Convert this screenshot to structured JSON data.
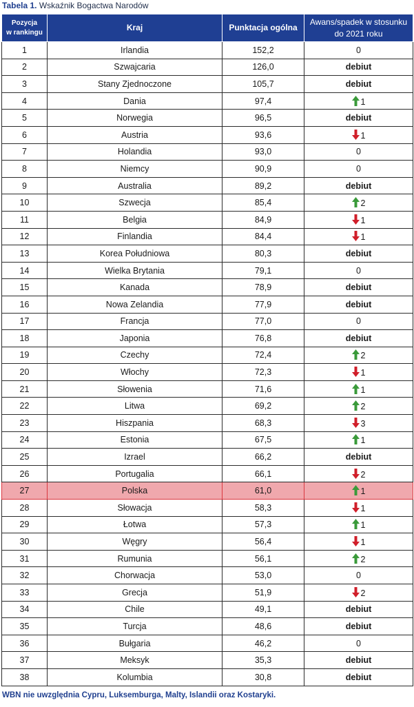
{
  "caption": {
    "label": "Tabela 1.",
    "title": "Wskaźnik Bogactwa Narodów"
  },
  "headers": {
    "position_line1": "Pozycja",
    "position_line2": "w rankingu",
    "country": "Kraj",
    "score": "Punktacja ogólna",
    "change_line1": "Awans/spadek w stosunku",
    "change_line2": "do 2021 roku"
  },
  "colors": {
    "header_bg": "#1f3f93",
    "highlight_bg": "#f0a8ad",
    "up_arrow": "#3a9a3a",
    "down_arrow": "#d01f2a"
  },
  "rows": [
    {
      "pos": "1",
      "country": "Irlandia",
      "score": "152,2",
      "change": {
        "kind": "zero",
        "text": "0"
      }
    },
    {
      "pos": "2",
      "country": "Szwajcaria",
      "score": "126,0",
      "change": {
        "kind": "debut",
        "text": "debiut"
      }
    },
    {
      "pos": "3",
      "country": "Stany Zjednoczone",
      "score": "105,7",
      "change": {
        "kind": "debut",
        "text": "debiut"
      }
    },
    {
      "pos": "4",
      "country": "Dania",
      "score": "97,4",
      "change": {
        "kind": "up",
        "text": "1"
      }
    },
    {
      "pos": "5",
      "country": "Norwegia",
      "score": "96,5",
      "change": {
        "kind": "debut",
        "text": "debiut"
      }
    },
    {
      "pos": "6",
      "country": "Austria",
      "score": "93,6",
      "change": {
        "kind": "down",
        "text": "1"
      }
    },
    {
      "pos": "7",
      "country": "Holandia",
      "score": "93,0",
      "change": {
        "kind": "zero",
        "text": "0"
      }
    },
    {
      "pos": "8",
      "country": "Niemcy",
      "score": "90,9",
      "change": {
        "kind": "zero",
        "text": "0"
      }
    },
    {
      "pos": "9",
      "country": "Australia",
      "score": "89,2",
      "change": {
        "kind": "debut",
        "text": "debiut"
      }
    },
    {
      "pos": "10",
      "country": "Szwecja",
      "score": "85,4",
      "change": {
        "kind": "up",
        "text": "2"
      }
    },
    {
      "pos": "11",
      "country": "Belgia",
      "score": "84,9",
      "change": {
        "kind": "down",
        "text": "1"
      }
    },
    {
      "pos": "12",
      "country": "Finlandia",
      "score": "84,4",
      "change": {
        "kind": "down",
        "text": "1"
      }
    },
    {
      "pos": "13",
      "country": "Korea Południowa",
      "score": "80,3",
      "change": {
        "kind": "debut",
        "text": "debiut"
      }
    },
    {
      "pos": "14",
      "country": "Wielka Brytania",
      "score": "79,1",
      "change": {
        "kind": "zero",
        "text": "0"
      }
    },
    {
      "pos": "15",
      "country": "Kanada",
      "score": "78,9",
      "change": {
        "kind": "debut",
        "text": "debiut"
      }
    },
    {
      "pos": "16",
      "country": "Nowa Zelandia",
      "score": "77,9",
      "change": {
        "kind": "debut",
        "text": "debiut"
      }
    },
    {
      "pos": "17",
      "country": "Francja",
      "score": "77,0",
      "change": {
        "kind": "zero",
        "text": "0"
      }
    },
    {
      "pos": "18",
      "country": "Japonia",
      "score": "76,8",
      "change": {
        "kind": "debut",
        "text": "debiut"
      }
    },
    {
      "pos": "19",
      "country": "Czechy",
      "score": "72,4",
      "change": {
        "kind": "up",
        "text": "2"
      }
    },
    {
      "pos": "20",
      "country": "Włochy",
      "score": "72,3",
      "change": {
        "kind": "down",
        "text": "1"
      }
    },
    {
      "pos": "21",
      "country": "Słowenia",
      "score": "71,6",
      "change": {
        "kind": "up",
        "text": "1"
      }
    },
    {
      "pos": "22",
      "country": "Litwa",
      "score": "69,2",
      "change": {
        "kind": "up",
        "text": "2"
      }
    },
    {
      "pos": "23",
      "country": "Hiszpania",
      "score": "68,3",
      "change": {
        "kind": "down",
        "text": "3"
      }
    },
    {
      "pos": "24",
      "country": "Estonia",
      "score": "67,5",
      "change": {
        "kind": "up",
        "text": "1"
      }
    },
    {
      "pos": "25",
      "country": "Izrael",
      "score": "66,2",
      "change": {
        "kind": "debut",
        "text": "debiut"
      }
    },
    {
      "pos": "26",
      "country": "Portugalia",
      "score": "66,1",
      "change": {
        "kind": "down",
        "text": "2"
      }
    },
    {
      "pos": "27",
      "country": "Polska",
      "score": "61,0",
      "change": {
        "kind": "up",
        "text": "1"
      },
      "highlight": true
    },
    {
      "pos": "28",
      "country": "Słowacja",
      "score": "58,3",
      "change": {
        "kind": "down",
        "text": "1"
      }
    },
    {
      "pos": "29",
      "country": "Łotwa",
      "score": "57,3",
      "change": {
        "kind": "up",
        "text": "1"
      }
    },
    {
      "pos": "30",
      "country": "Węgry",
      "score": "56,4",
      "change": {
        "kind": "down",
        "text": "1"
      }
    },
    {
      "pos": "31",
      "country": "Rumunia",
      "score": "56,1",
      "change": {
        "kind": "up",
        "text": "2"
      }
    },
    {
      "pos": "32",
      "country": "Chorwacja",
      "score": "53,0",
      "change": {
        "kind": "zero",
        "text": "0"
      }
    },
    {
      "pos": "33",
      "country": "Grecja",
      "score": "51,9",
      "change": {
        "kind": "down",
        "text": "2"
      }
    },
    {
      "pos": "34",
      "country": "Chile",
      "score": "49,1",
      "change": {
        "kind": "debut",
        "text": "debiut"
      }
    },
    {
      "pos": "35",
      "country": "Turcja",
      "score": "48,6",
      "change": {
        "kind": "debut",
        "text": "debiut"
      }
    },
    {
      "pos": "36",
      "country": "Bułgaria",
      "score": "46,2",
      "change": {
        "kind": "zero",
        "text": "0"
      }
    },
    {
      "pos": "37",
      "country": "Meksyk",
      "score": "35,3",
      "change": {
        "kind": "debut",
        "text": "debiut"
      }
    },
    {
      "pos": "38",
      "country": "Kolumbia",
      "score": "30,8",
      "change": {
        "kind": "debut",
        "text": "debiut"
      }
    }
  ],
  "footnote": "WBN nie uwzględnia Cypru, Luksemburga, Malty, Islandii oraz Kostaryki."
}
